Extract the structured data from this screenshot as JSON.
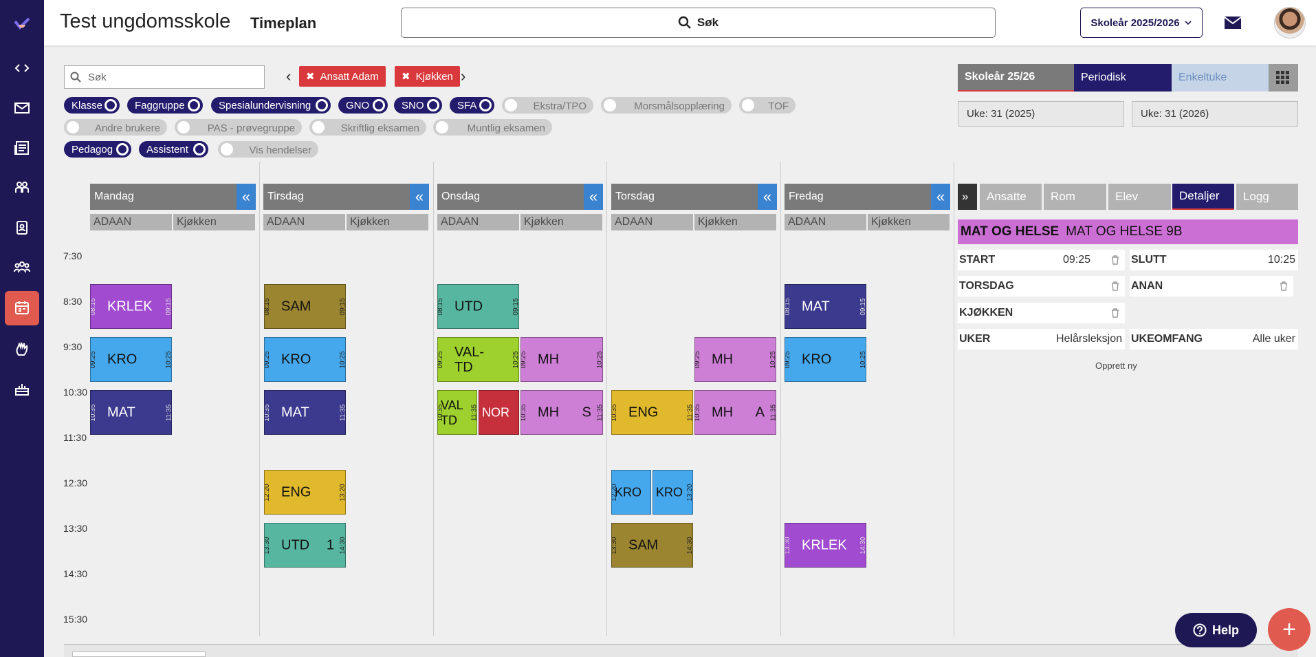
{
  "header": {
    "school": "Test ungdomsskole",
    "page_title": "Timeplan",
    "search_label": "Søk",
    "year_selector": "Skoleår 2025/2026"
  },
  "filters": {
    "search_placeholder": "Søk",
    "chips": [
      {
        "label": "Ansatt Adam"
      },
      {
        "label": "Kjøkken"
      }
    ],
    "toggles": [
      {
        "label": "Klasse",
        "on": true
      },
      {
        "label": "Faggruppe",
        "on": true
      },
      {
        "label": "Spesialundervisning",
        "on": true
      },
      {
        "label": "GNO",
        "on": true
      },
      {
        "label": "SNO",
        "on": true
      },
      {
        "label": "SFA",
        "on": true
      },
      {
        "label": "Ekstra/TPO",
        "on": false
      },
      {
        "label": "Morsmålsopplæring",
        "on": false
      },
      {
        "label": "TOF",
        "on": false
      },
      {
        "label": "Andre brukere",
        "on": false
      },
      {
        "label": "PAS - prøvegruppe",
        "on": false
      },
      {
        "label": "Skriftlig eksamen",
        "on": false
      },
      {
        "label": "Muntlig eksamen",
        "on": false
      },
      {
        "label": "Pedagog",
        "on": true
      },
      {
        "label": "Assistent",
        "on": true
      },
      {
        "label": "Vis hendelser",
        "on": false
      }
    ]
  },
  "view_tabs": {
    "year": "Skoleår 25/26",
    "periodic": "Periodisk",
    "single_week": "Enkeltuke",
    "week_from": "Uke: 31 (2025)",
    "week_to": "Uke: 31 (2026)"
  },
  "calendar": {
    "times": [
      "7:30",
      "8:30",
      "9:30",
      "10:30",
      "11:30",
      "12:30",
      "13:30",
      "14:30",
      "15:30"
    ],
    "days": [
      {
        "name": "Mandag",
        "sub": [
          "ADAAN",
          "Kjøkken"
        ]
      },
      {
        "name": "Tirsdag",
        "sub": [
          "ADAAN",
          "Kjøkken"
        ]
      },
      {
        "name": "Onsdag",
        "sub": [
          "ADAAN",
          "Kjøkken"
        ]
      },
      {
        "name": "Torsdag",
        "sub": [
          "ADAAN",
          "Kjøkken"
        ]
      },
      {
        "name": "Fredag",
        "sub": [
          "ADAAN",
          "Kjøkken"
        ]
      }
    ],
    "events": [
      {
        "day": 0,
        "name": "KRLEK",
        "start": "08:15",
        "end": "09:15",
        "color": "#a14cd0"
      },
      {
        "day": 0,
        "name": "KRO",
        "start": "09:25",
        "end": "10:25",
        "color": "#46a8ec"
      },
      {
        "day": 0,
        "name": "MAT",
        "start": "10:35",
        "end": "11:35",
        "color": "#3c3a8f"
      },
      {
        "day": 1,
        "name": "SAM",
        "start": "08:15",
        "end": "09:15",
        "color": "#9c8530"
      },
      {
        "day": 1,
        "name": "KRO",
        "start": "09:25",
        "end": "10:25",
        "color": "#46a8ec"
      },
      {
        "day": 1,
        "name": "MAT",
        "start": "10:35",
        "end": "11:35",
        "color": "#3c3a8f"
      },
      {
        "day": 1,
        "name": "ENG",
        "start": "12:20",
        "end": "13:20",
        "color": "#e0b92c"
      },
      {
        "day": 1,
        "name": "UTD",
        "start": "13:30",
        "end": "14:30",
        "color": "#57b6a0",
        "extra": "1"
      },
      {
        "day": 2,
        "name": "UTD",
        "start": "08:15",
        "end": "09:15",
        "color": "#57b6a0"
      },
      {
        "day": 2,
        "name": "VAL-TD",
        "start": "09:25",
        "end": "10:25",
        "color": "#9ed02e"
      },
      {
        "day": 2,
        "name": "MH",
        "start": "09:25",
        "end": "10:25",
        "color": "#cd7fd6"
      },
      {
        "day": 2,
        "name": "VAL TD",
        "start": "10:35",
        "end": "11:35",
        "color": "#9ed02e"
      },
      {
        "day": 2,
        "name": "NOR",
        "start": "",
        "end": "",
        "color": "#c6303d"
      },
      {
        "day": 2,
        "name": "MH",
        "start": "10:35",
        "end": "11:35",
        "color": "#cd7fd6",
        "extra": "S"
      },
      {
        "day": 3,
        "name": "MH",
        "start": "09:25",
        "end": "10:25",
        "color": "#cd7fd6"
      },
      {
        "day": 3,
        "name": "ENG",
        "start": "10:35",
        "end": "11:35",
        "color": "#e0b92c"
      },
      {
        "day": 3,
        "name": "MH",
        "start": "10:35",
        "end": "11:35",
        "color": "#cd7fd6",
        "extra": "A"
      },
      {
        "day": 3,
        "name": "KRO",
        "start": "12:20",
        "end": "",
        "color": "#46a8ec"
      },
      {
        "day": 3,
        "name": "KRO",
        "start": "",
        "end": "13:20",
        "color": "#46a8ec"
      },
      {
        "day": 3,
        "name": "SAM",
        "start": "13:30",
        "end": "14:30",
        "color": "#9c8530"
      },
      {
        "day": 4,
        "name": "MAT",
        "start": "08:15",
        "end": "09:15",
        "color": "#3c3a8f"
      },
      {
        "day": 4,
        "name": "KRO",
        "start": "09:25",
        "end": "10:25",
        "color": "#46a8ec"
      },
      {
        "day": 4,
        "name": "KRLEK",
        "start": "13:30",
        "end": "14:30",
        "color": "#a14cd0"
      }
    ]
  },
  "panel": {
    "collapse_label": "»",
    "tabs": [
      "Ansatte",
      "Rom",
      "Elev",
      "Detaljer",
      "Logg"
    ],
    "active_tab": "Detaljer",
    "subject": "MAT OG HELSE",
    "group": "MAT OG HELSE 9B",
    "start_label": "START",
    "start_value": "09:25",
    "end_label": "SLUTT",
    "end_value": "10:25",
    "day_label": "TORSDAG",
    "teacher_label": "ANAN",
    "room_label": "KJØKKEN",
    "weeks_label": "UKER",
    "weeks_value": "Helårsleksjon",
    "scope_label": "UKEOMFANG",
    "scope_value": "Alle uker",
    "create_new": "Opprett ny"
  },
  "help_label": "Help",
  "fab_label": "+"
}
